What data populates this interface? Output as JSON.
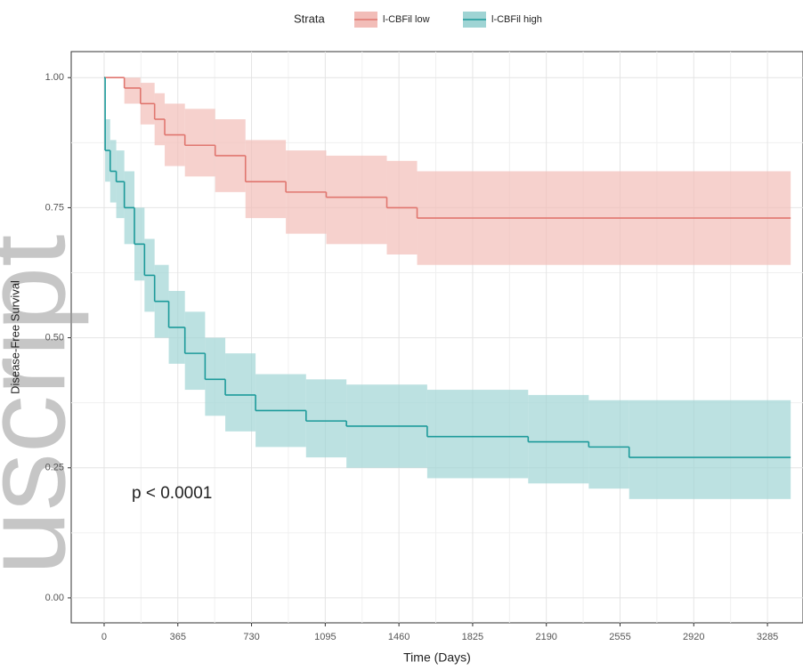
{
  "chart_data": {
    "type": "survival",
    "legend_title": "Strata",
    "xlabel": "Time (Days)",
    "ylabel": "Disease-Free Survival",
    "annotation": "p < 0.0001",
    "watermark": "uscript",
    "xlim": [
      -163,
      3461
    ],
    "ylim": [
      -0.048,
      1.05
    ],
    "xticks": [
      0,
      365,
      730,
      1095,
      1460,
      1825,
      2190,
      2555,
      2920,
      3285
    ],
    "yticks": [
      {
        "value": 0,
        "label": "0.00"
      },
      {
        "value": 0.25,
        "label": "0.25"
      },
      {
        "value": 0.5,
        "label": "0.50"
      },
      {
        "value": 0.75,
        "label": "0.75"
      },
      {
        "value": 1,
        "label": "1.00"
      }
    ],
    "grid": true,
    "legend_position": "top",
    "series": [
      {
        "name": "l-CBFil low",
        "color": "#e0766f",
        "band_color": "#f2bdb8",
        "x": [
          0,
          100,
          180,
          250,
          300,
          400,
          550,
          700,
          900,
          1100,
          1400,
          1550,
          3400
        ],
        "values": [
          1.0,
          0.98,
          0.95,
          0.92,
          0.89,
          0.87,
          0.85,
          0.8,
          0.78,
          0.77,
          0.75,
          0.73,
          0.73
        ],
        "lower": [
          1.0,
          0.95,
          0.91,
          0.87,
          0.83,
          0.81,
          0.78,
          0.73,
          0.7,
          0.68,
          0.66,
          0.64,
          0.64
        ],
        "upper": [
          1.0,
          1.0,
          0.99,
          0.97,
          0.95,
          0.94,
          0.92,
          0.88,
          0.86,
          0.85,
          0.84,
          0.82,
          0.82
        ]
      },
      {
        "name": "l-CBFil high",
        "color": "#1c9a9a",
        "band_color": "#9fd4d4",
        "x": [
          0,
          5,
          30,
          60,
          100,
          150,
          200,
          250,
          320,
          400,
          500,
          600,
          750,
          1000,
          1200,
          1600,
          2100,
          2400,
          2600,
          3400
        ],
        "values": [
          1.0,
          0.86,
          0.82,
          0.8,
          0.75,
          0.68,
          0.62,
          0.57,
          0.52,
          0.47,
          0.42,
          0.39,
          0.36,
          0.34,
          0.33,
          0.31,
          0.3,
          0.29,
          0.27,
          0.27
        ],
        "lower": [
          1.0,
          0.8,
          0.76,
          0.73,
          0.68,
          0.61,
          0.55,
          0.5,
          0.45,
          0.4,
          0.35,
          0.32,
          0.29,
          0.27,
          0.25,
          0.23,
          0.22,
          0.21,
          0.19,
          0.19
        ],
        "upper": [
          1.0,
          0.92,
          0.88,
          0.86,
          0.82,
          0.75,
          0.69,
          0.64,
          0.59,
          0.55,
          0.5,
          0.47,
          0.43,
          0.42,
          0.41,
          0.4,
          0.39,
          0.38,
          0.38,
          0.38
        ]
      }
    ]
  }
}
